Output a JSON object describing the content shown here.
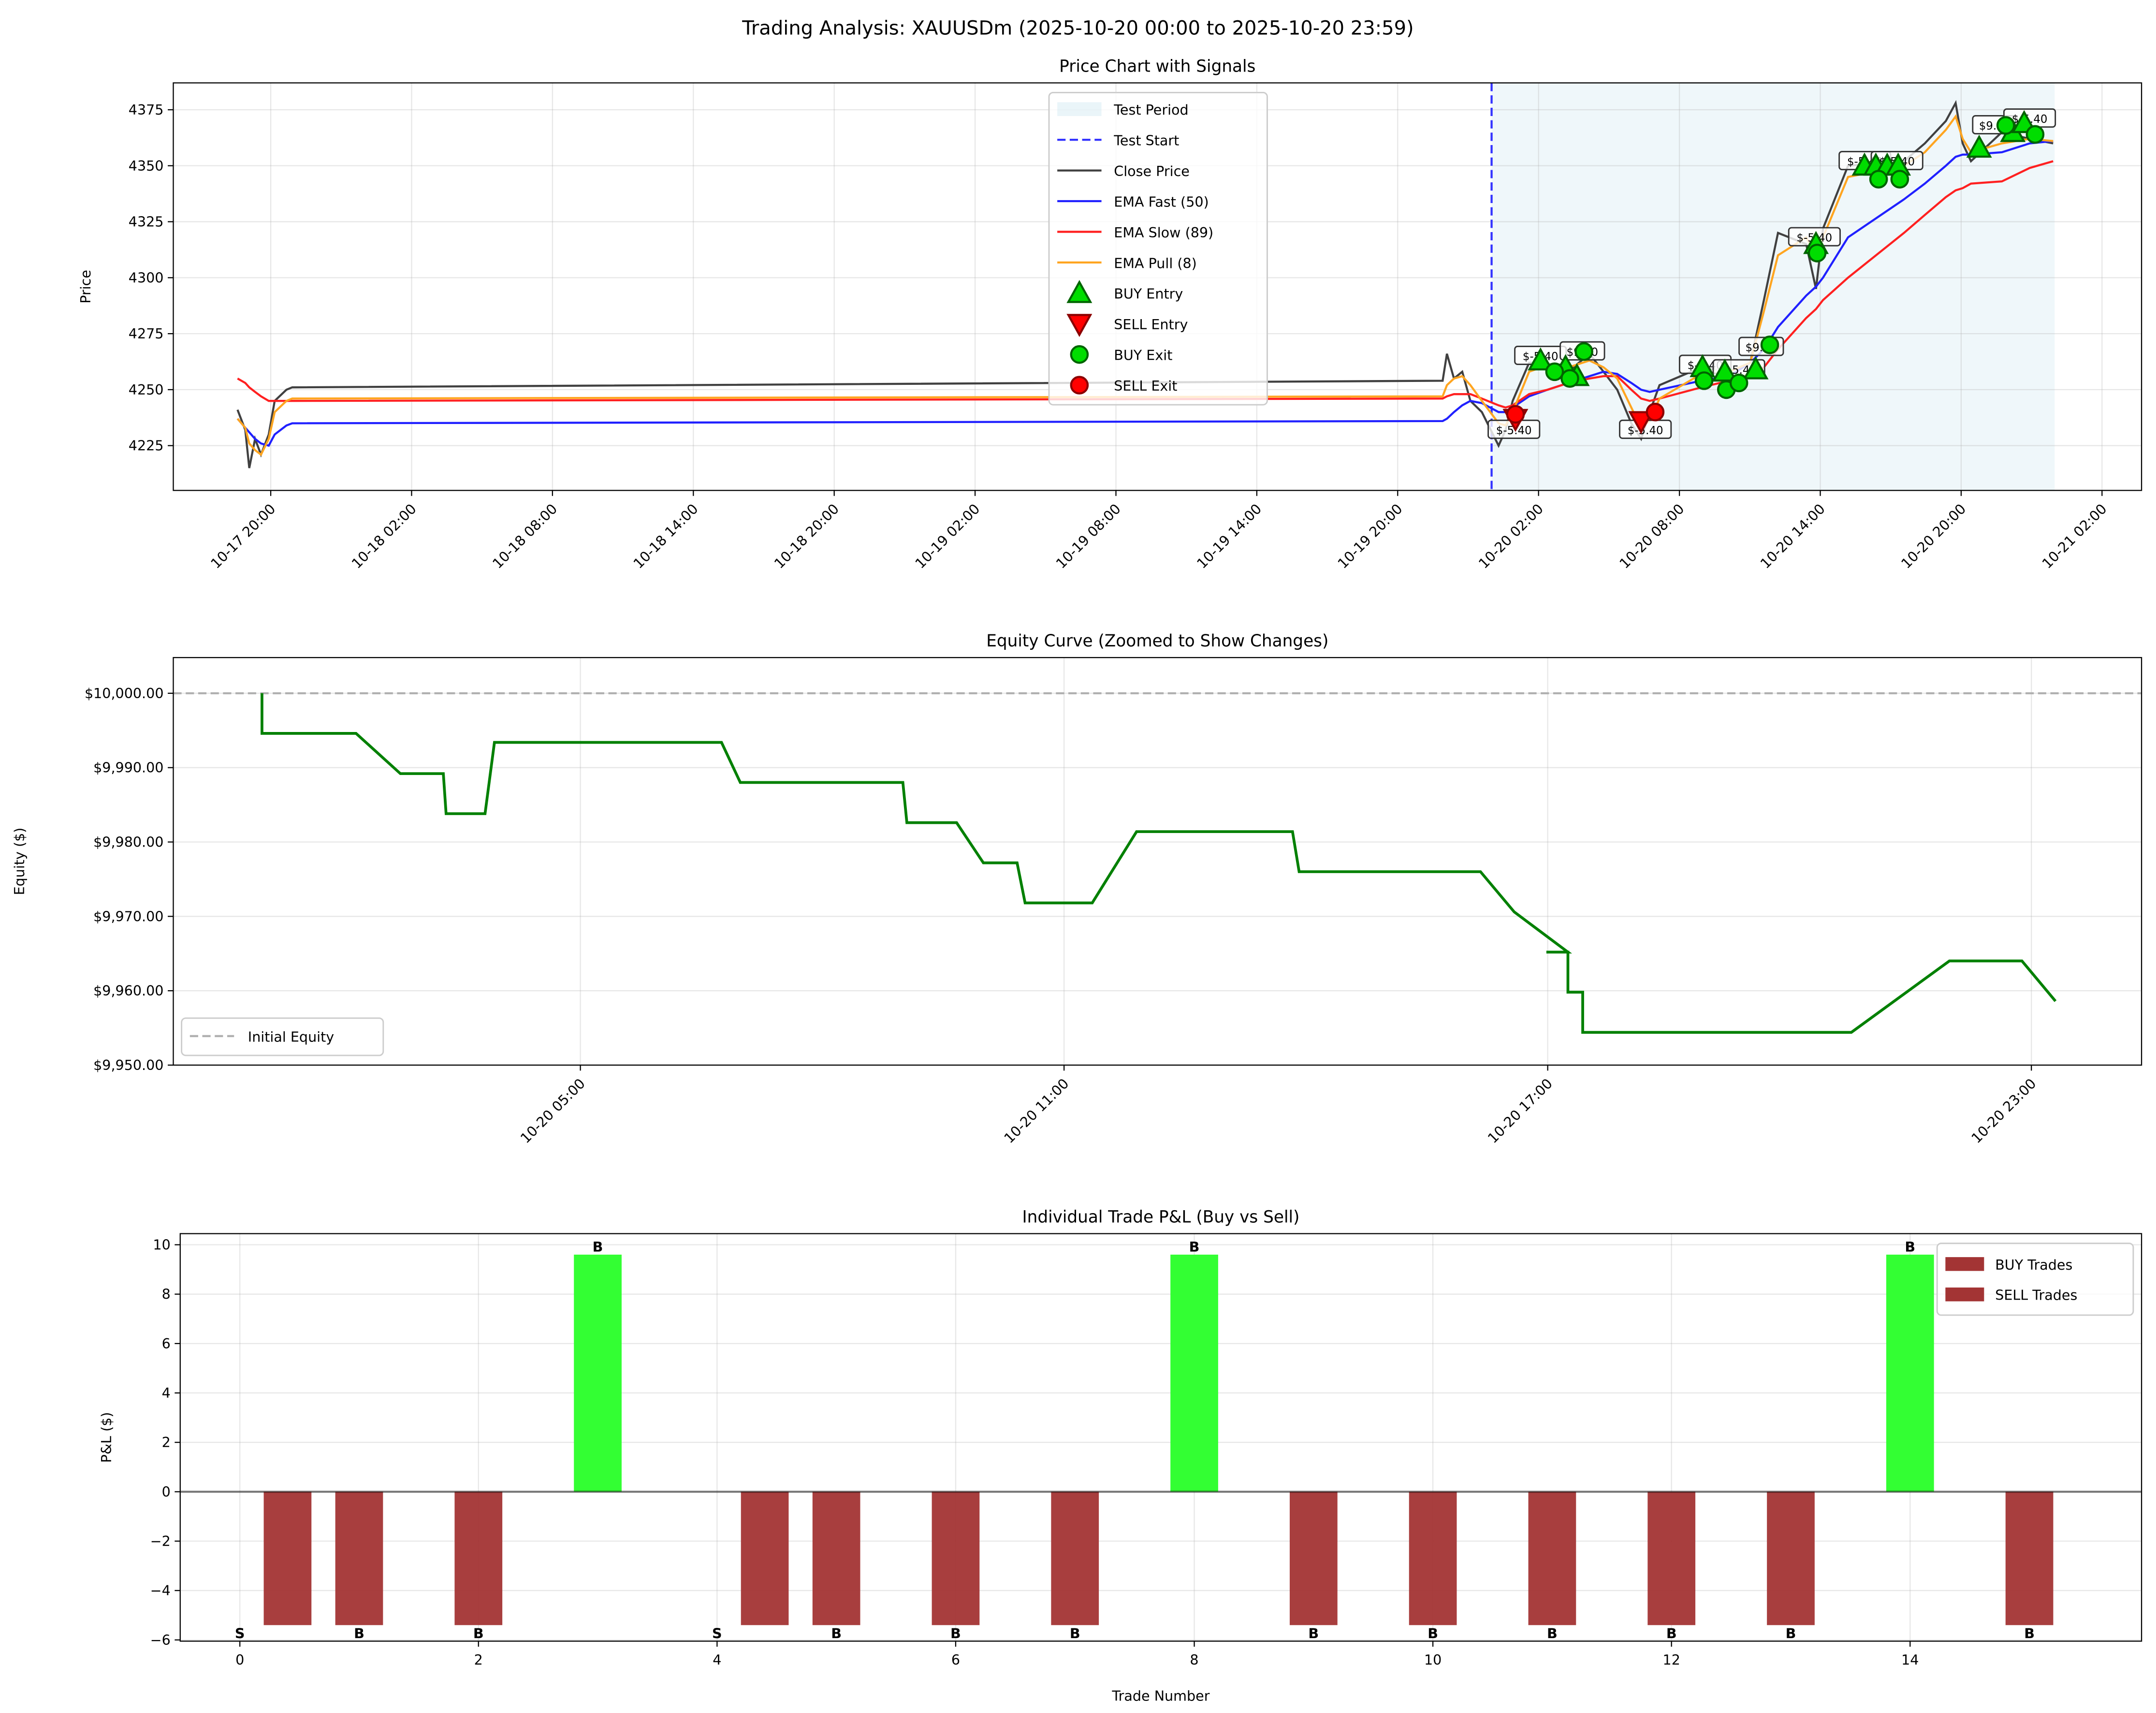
{
  "suptitle": "Trading Analysis: XAUUSDm (2025-10-20 00:00 to 2025-10-20 23:59)",
  "colors": {
    "close": "#404040",
    "ema_fast": "#2020ff",
    "ema_slow": "#ff2020",
    "ema_pull": "#ffa520",
    "test_line": "#3333ff",
    "test_fill": "#add8e6",
    "equity": "#008000",
    "initial": "#b0b0b0",
    "loss_bar": "#a33434",
    "win_bar": "#33ff33",
    "buy_marker": "#00dd00",
    "buy_edge": "#006400",
    "sell_marker": "#ff0000",
    "sell_edge": "#8b0000"
  },
  "chart_data": [
    {
      "type": "line",
      "title": "Price Chart with Signals",
      "ylabel": "Price",
      "xlim": [
        "2025-10-17 15:51",
        "2025-10-21 03:41"
      ],
      "ylim": [
        4205,
        4387
      ],
      "yticks": [
        4225,
        4250,
        4275,
        4300,
        4325,
        4350,
        4375
      ],
      "xticks": [
        {
          "t": "2025-10-17 20:00",
          "label": "10-17 20:00"
        },
        {
          "t": "2025-10-18 02:00",
          "label": "10-18 02:00"
        },
        {
          "t": "2025-10-18 08:00",
          "label": "10-18 08:00"
        },
        {
          "t": "2025-10-18 14:00",
          "label": "10-18 14:00"
        },
        {
          "t": "2025-10-18 20:00",
          "label": "10-18 20:00"
        },
        {
          "t": "2025-10-19 02:00",
          "label": "10-19 02:00"
        },
        {
          "t": "2025-10-19 08:00",
          "label": "10-19 08:00"
        },
        {
          "t": "2025-10-19 14:00",
          "label": "10-19 14:00"
        },
        {
          "t": "2025-10-19 20:00",
          "label": "10-19 20:00"
        },
        {
          "t": "2025-10-20 02:00",
          "label": "10-20 02:00"
        },
        {
          "t": "2025-10-20 08:00",
          "label": "10-20 08:00"
        },
        {
          "t": "2025-10-20 14:00",
          "label": "10-20 14:00"
        },
        {
          "t": "2025-10-20 20:00",
          "label": "10-20 20:00"
        },
        {
          "t": "2025-10-21 02:00",
          "label": "10-21 02:00"
        }
      ],
      "grid": true,
      "legend_position": "top-center",
      "test_period": [
        "2025-10-20 00:00",
        "2025-10-20 23:59"
      ],
      "legend": [
        "Test Period",
        "Test Start",
        "Close Price",
        "EMA Fast (50)",
        "EMA Slow (89)",
        "EMA Pull (8)",
        "BUY Entry",
        "SELL Entry",
        "BUY Exit",
        "SELL Exit"
      ],
      "times": [
        "2025-10-17 18:35",
        "2025-10-17 18:55",
        "2025-10-17 19:05",
        "2025-10-17 19:20",
        "2025-10-17 19:35",
        "2025-10-17 19:55",
        "2025-10-17 20:10",
        "2025-10-17 20:40",
        "2025-10-17 20:55",
        "2025-10-19 21:55",
        "2025-10-19 22:06",
        "2025-10-19 22:24",
        "2025-10-19 22:45",
        "2025-10-19 23:06",
        "2025-10-19 23:35",
        "2025-10-20 00:18",
        "2025-10-20 00:36",
        "2025-10-20 00:54",
        "2025-10-20 01:36",
        "2025-10-20 02:23",
        "2025-10-20 03:16",
        "2025-10-20 04:10",
        "2025-10-20 04:46",
        "2025-10-20 05:21",
        "2025-10-20 05:57",
        "2025-10-20 06:22",
        "2025-10-20 06:44",
        "2025-10-20 07:09",
        "2025-10-20 08:56",
        "2025-10-20 10:07",
        "2025-10-20 11:01",
        "2025-10-20 11:36",
        "2025-10-20 12:12",
        "2025-10-20 13:24",
        "2025-10-20 13:49",
        "2025-10-20 14:07",
        "2025-10-20 15:11",
        "2025-10-20 17:34",
        "2025-10-20 18:27",
        "2025-10-20 19:21",
        "2025-10-20 19:46",
        "2025-10-20 20:04",
        "2025-10-20 20:25",
        "2025-10-20 21:44",
        "2025-10-20 22:55",
        "2025-10-20 23:55"
      ],
      "series": [
        {
          "name": "Close Price",
          "key": "close",
          "values": [
            4241,
            4232,
            4215,
            4228,
            4221,
            4230,
            4245,
            4250,
            4251,
            4254,
            4266,
            4255,
            4258,
            4245,
            4240,
            4225,
            4232,
            4245,
            4262,
            4262,
            4258,
            4266,
            4258,
            4250,
            4235,
            4228,
            4240,
            4252,
            4260,
            4258,
            4262,
            4290,
            4320,
            4315,
            4295,
            4322,
            4350,
            4352,
            4360,
            4370,
            4378,
            4360,
            4352,
            4365,
            4362,
            4360
          ]
        },
        {
          "name": "EMA Fast (50)",
          "key": "ema_fast",
          "values": [
            4237,
            4233,
            4231,
            4228,
            4226,
            4225,
            4230,
            4234,
            4235,
            4236,
            4237,
            4240,
            4243,
            4245,
            4244,
            4240,
            4240,
            4242,
            4247,
            4250,
            4253,
            4256,
            4258,
            4257,
            4253,
            4250,
            4249,
            4250,
            4254,
            4256,
            4262,
            4268,
            4278,
            4292,
            4296,
            4300,
            4318,
            4335,
            4342,
            4350,
            4354,
            4355,
            4355,
            4356,
            4360,
            4361
          ]
        },
        {
          "name": "EMA Slow (89)",
          "key": "ema_slow",
          "values": [
            4255,
            4253,
            4251,
            4249,
            4247,
            4245,
            4245,
            4245,
            4245,
            4246,
            4247,
            4248,
            4248,
            4248,
            4246,
            4243,
            4242,
            4243,
            4248,
            4250,
            4253,
            4255,
            4256,
            4256,
            4250,
            4246,
            4245,
            4246,
            4251,
            4254,
            4257,
            4260,
            4268,
            4282,
            4286,
            4290,
            4300,
            4320,
            4328,
            4336,
            4339,
            4340,
            4342,
            4343,
            4349,
            4352
          ]
        },
        {
          "name": "EMA Pull (8)",
          "key": "ema_pull",
          "values": [
            4237,
            4233,
            4226,
            4223,
            4221,
            4228,
            4240,
            4245,
            4246,
            4247,
            4252,
            4255,
            4256,
            4252,
            4245,
            4235,
            4234,
            4240,
            4258,
            4261,
            4260,
            4263,
            4260,
            4255,
            4242,
            4233,
            4236,
            4246,
            4257,
            4258,
            4262,
            4285,
            4310,
            4318,
            4310,
            4318,
            4345,
            4350,
            4356,
            4366,
            4372,
            4362,
            4356,
            4360,
            4362,
            4361
          ]
        }
      ],
      "buy_entries": [
        [
          "2025-10-20 02:05",
          4263
        ],
        [
          "2025-10-20 03:09",
          4260
        ],
        [
          "2025-10-20 03:38",
          4256
        ],
        [
          "2025-10-20 08:59",
          4260
        ],
        [
          "2025-10-20 09:56",
          4258
        ],
        [
          "2025-10-20 11:15",
          4259
        ],
        [
          "2025-10-20 13:49",
          4315
        ],
        [
          "2025-10-20 15:53",
          4350
        ],
        [
          "2025-10-20 16:22",
          4350
        ],
        [
          "2025-10-20 16:51",
          4350
        ],
        [
          "2025-10-20 17:19",
          4350
        ],
        [
          "2025-10-20 20:46",
          4358
        ],
        [
          "2025-10-20 22:12",
          4365
        ],
        [
          "2025-10-20 22:41",
          4369
        ]
      ],
      "sell_entries": [
        [
          "2025-10-20 01:01",
          4237
        ],
        [
          "2025-10-20 06:22",
          4236
        ]
      ],
      "buy_exits": [
        [
          "2025-10-20 02:41",
          4258
        ],
        [
          "2025-10-20 03:20",
          4255
        ],
        [
          "2025-10-20 03:56",
          4267
        ],
        [
          "2025-10-20 09:03",
          4254
        ],
        [
          "2025-10-20 10:00",
          4250
        ],
        [
          "2025-10-20 10:32",
          4253
        ],
        [
          "2025-10-20 11:51",
          4270
        ],
        [
          "2025-10-20 13:52",
          4311
        ],
        [
          "2025-10-20 16:29",
          4344
        ],
        [
          "2025-10-20 17:23",
          4344
        ],
        [
          "2025-10-20 21:54",
          4368
        ],
        [
          "2025-10-20 23:09",
          4364
        ]
      ],
      "sell_exits": [
        [
          "2025-10-20 01:01",
          4239
        ],
        [
          "2025-10-20 06:58",
          4240
        ]
      ],
      "annotations": [
        {
          "t": "2025-10-20 00:57",
          "p": 4232,
          "text": "$-5.40"
        },
        {
          "t": "2025-10-20 06:33",
          "p": 4232,
          "text": "$-5.40"
        },
        {
          "t": "2025-10-20 02:05",
          "p": 4265,
          "text": "$-5.40"
        },
        {
          "t": "2025-10-20 03:52",
          "p": 4267,
          "text": "$9.60"
        },
        {
          "t": "2025-10-20 09:06",
          "p": 4261,
          "text": "$-5.40"
        },
        {
          "t": "2025-10-20 10:32",
          "p": 4259,
          "text": "$-5.40"
        },
        {
          "t": "2025-10-20 11:29",
          "p": 4269,
          "text": "$9.60"
        },
        {
          "t": "2025-10-20 13:45",
          "p": 4318,
          "text": "$-5.40"
        },
        {
          "t": "2025-10-20 15:54",
          "p": 4352,
          "text": "$-5.40"
        },
        {
          "t": "2025-10-20 17:16",
          "p": 4352,
          "text": "$-5.40"
        },
        {
          "t": "2025-10-20 21:26",
          "p": 4368,
          "text": "$9.60"
        },
        {
          "t": "2025-10-20 22:55",
          "p": 4371,
          "text": "$-5.40"
        }
      ]
    },
    {
      "type": "line",
      "title": "Equity Curve (Zoomed to Show Changes)",
      "ylabel": "Equity ($)",
      "xlim": [
        "2025-10-19 23:57",
        "2025-10-21 00:22"
      ],
      "ylim": [
        9950,
        10004.8
      ],
      "yticks": [
        {
          "v": 9950,
          "label": "$9,950.00"
        },
        {
          "v": 9960,
          "label": "$9,960.00"
        },
        {
          "v": 9970,
          "label": "$9,970.00"
        },
        {
          "v": 9980,
          "label": "$9,980.00"
        },
        {
          "v": 9990,
          "label": "$9,990.00"
        },
        {
          "v": 10000,
          "label": "$10,000.00"
        }
      ],
      "xticks": [
        {
          "t": "2025-10-20 05:00",
          "label": "10-20 05:00"
        },
        {
          "t": "2025-10-20 11:00",
          "label": "10-20 11:00"
        },
        {
          "t": "2025-10-20 17:00",
          "label": "10-20 17:00"
        },
        {
          "t": "2025-10-20 23:00",
          "label": "10-20 23:00"
        }
      ],
      "grid": true,
      "initial_equity": 10000,
      "legend": [
        "Initial Equity"
      ],
      "legend_position": "bottom-left",
      "points": [
        [
          "2025-10-20 01:03",
          10000
        ],
        [
          "2025-10-20 01:03",
          9994.6
        ],
        [
          "2025-10-20 02:13",
          9994.6
        ],
        [
          "2025-10-20 02:46",
          9989.2
        ],
        [
          "2025-10-20 03:18",
          9989.2
        ],
        [
          "2025-10-20 03:20",
          9983.8
        ],
        [
          "2025-10-20 03:49",
          9983.8
        ],
        [
          "2025-10-20 03:56",
          9993.4
        ],
        [
          "2025-10-20 06:45",
          9993.4
        ],
        [
          "2025-10-20 06:59",
          9988.0
        ],
        [
          "2025-10-20 09:00",
          9988.0
        ],
        [
          "2025-10-20 09:03",
          9982.6
        ],
        [
          "2025-10-20 09:40",
          9982.6
        ],
        [
          "2025-10-20 10:00",
          9977.2
        ],
        [
          "2025-10-20 10:25",
          9977.2
        ],
        [
          "2025-10-20 10:31",
          9971.8
        ],
        [
          "2025-10-20 11:21",
          9971.8
        ],
        [
          "2025-10-20 11:54",
          9981.4
        ],
        [
          "2025-10-20 13:50",
          9981.4
        ],
        [
          "2025-10-20 13:55",
          9976.0
        ],
        [
          "2025-10-20 16:10",
          9976.0
        ],
        [
          "2025-10-20 16:35",
          9970.6
        ],
        [
          "2025-10-20 17:15",
          9965.2
        ],
        [
          "2025-10-20 16:59",
          9965.2
        ],
        [
          "2025-10-20 17:15",
          9965.2
        ],
        [
          "2025-10-20 17:15",
          9959.8
        ],
        [
          "2025-10-20 17:26",
          9959.8
        ],
        [
          "2025-10-20 17:26",
          9954.4
        ],
        [
          "2025-10-20 20:46",
          9954.4
        ],
        [
          "2025-10-20 21:59",
          9964.0
        ],
        [
          "2025-10-20 22:53",
          9964.0
        ],
        [
          "2025-10-20 23:18",
          9958.6
        ]
      ]
    },
    {
      "type": "bar",
      "title": "Individual Trade P&L (Buy vs Sell)",
      "xlabel": "Trade Number",
      "ylabel": "P&L ($)",
      "xlim": [
        -0.5,
        15.94
      ],
      "ylim": [
        -6.05,
        10.45
      ],
      "xticks": [
        0,
        2,
        4,
        6,
        8,
        10,
        12,
        14
      ],
      "yticks": [
        -6,
        -4,
        -2,
        0,
        2,
        4,
        6,
        8,
        10
      ],
      "grid": true,
      "legend": [
        "BUY Trades",
        "SELL Trades"
      ],
      "legend_position": "top-right",
      "trades": [
        {
          "n": 0,
          "side": "S",
          "pnl": -5.4
        },
        {
          "n": 1,
          "side": "B",
          "pnl": -5.4
        },
        {
          "n": 2,
          "side": "B",
          "pnl": -5.4
        },
        {
          "n": 3,
          "side": "B",
          "pnl": 9.6
        },
        {
          "n": 4,
          "side": "S",
          "pnl": -5.4
        },
        {
          "n": 5,
          "side": "B",
          "pnl": -5.4
        },
        {
          "n": 6,
          "side": "B",
          "pnl": -5.4
        },
        {
          "n": 7,
          "side": "B",
          "pnl": -5.4
        },
        {
          "n": 8,
          "side": "B",
          "pnl": 9.6
        },
        {
          "n": 9,
          "side": "B",
          "pnl": -5.4
        },
        {
          "n": 10,
          "side": "B",
          "pnl": -5.4
        },
        {
          "n": 11,
          "side": "B",
          "pnl": -5.4
        },
        {
          "n": 12,
          "side": "B",
          "pnl": -5.4
        },
        {
          "n": 13,
          "side": "B",
          "pnl": -5.4
        },
        {
          "n": 14,
          "side": "B",
          "pnl": 9.6
        },
        {
          "n": 15,
          "side": "B",
          "pnl": -5.4
        }
      ]
    }
  ]
}
